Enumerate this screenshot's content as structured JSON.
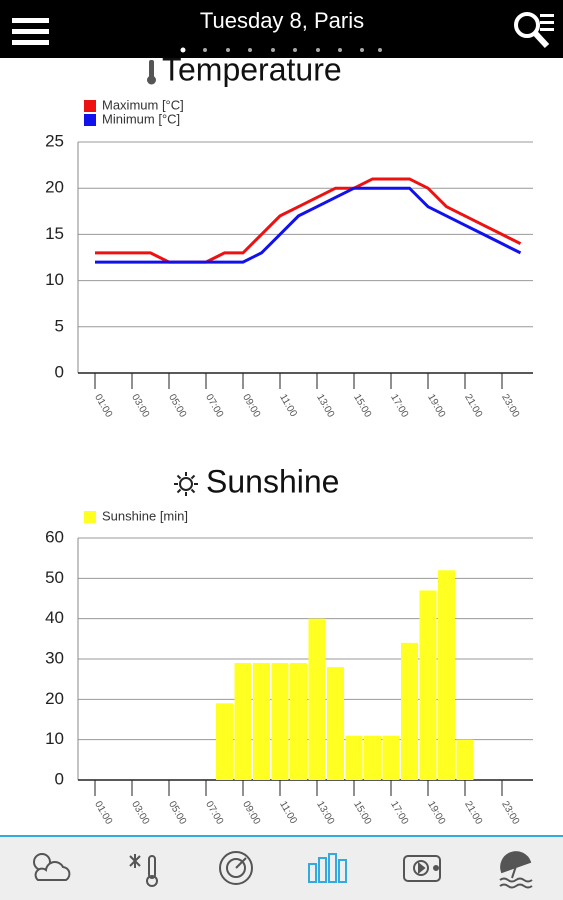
{
  "header": {
    "title": "Tuesday 8, Paris"
  },
  "chart_data": [
    {
      "type": "line",
      "title": "Temperature",
      "categories": [
        "01:00",
        null,
        "03:00",
        null,
        "05:00",
        null,
        "07:00",
        null,
        "09:00",
        null,
        "11:00",
        null,
        "13:00",
        null,
        "15:00",
        null,
        "17:00",
        null,
        "19:00",
        null,
        "21:00",
        null,
        "23:00",
        null
      ],
      "series": [
        {
          "name": "Maximum [°C]",
          "color": "#ee1111",
          "values": [
            13,
            13,
            13,
            13,
            12,
            12,
            12,
            13,
            13,
            15,
            17,
            18,
            19,
            20,
            20,
            21,
            21,
            21,
            20,
            18,
            17,
            16,
            15,
            14
          ]
        },
        {
          "name": "Minimum [°C]",
          "color": "#1111ee",
          "values": [
            12,
            12,
            12,
            12,
            12,
            12,
            12,
            12,
            12,
            13,
            15,
            17,
            18,
            19,
            20,
            20,
            20,
            20,
            18,
            17,
            16,
            15,
            14,
            13
          ]
        }
      ],
      "ylim": [
        0,
        25
      ],
      "yticks": [
        0,
        5,
        10,
        15,
        20,
        25
      ],
      "grid": true
    },
    {
      "type": "bar",
      "title": "Sunshine",
      "categories": [
        "01:00",
        null,
        "03:00",
        null,
        "05:00",
        null,
        "07:00",
        null,
        "09:00",
        null,
        "11:00",
        null,
        "13:00",
        null,
        "15:00",
        null,
        "17:00",
        null,
        "19:00",
        null,
        "21:00",
        null,
        "23:00",
        null
      ],
      "series": [
        {
          "name": "Sunshine [min]",
          "color": "#ffff22",
          "values": [
            0,
            0,
            0,
            0,
            0,
            0,
            0,
            19,
            29,
            29,
            29,
            29,
            40,
            28,
            11,
            11,
            11,
            34,
            47,
            52,
            10,
            0,
            0,
            0
          ]
        }
      ],
      "ylim": [
        0,
        60
      ],
      "yticks": [
        0,
        10,
        20,
        30,
        40,
        50,
        60
      ],
      "grid": true
    }
  ]
}
